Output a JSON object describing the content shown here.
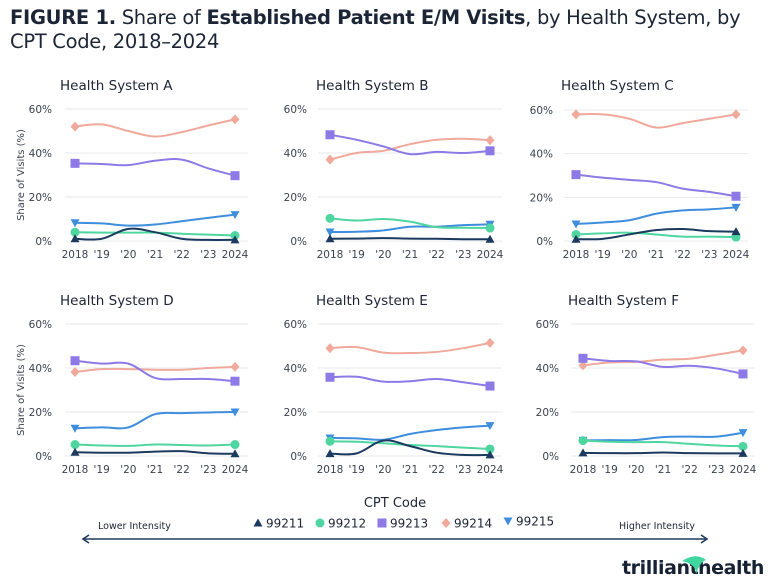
{
  "title": {
    "prefix": "FIGURE 1.",
    "part1": " Share of ",
    "bold": "Established Patient E/M Visits",
    "part2": ", by Health System, by CPT Code, 2018–2024"
  },
  "chart_data": {
    "type": "line",
    "title": "FIGURE 1. Share of Established Patient E/M Visits, by Health System, by CPT Code, 2018–2024",
    "ylabel": "Share of Visits (%)",
    "xlabel": "",
    "x": [
      2018,
      2019,
      2020,
      2021,
      2022,
      2023,
      2024
    ],
    "x_tick_labels": [
      "2018",
      "'19",
      "'20",
      "'21",
      "'22",
      "'23",
      "2024"
    ],
    "ylim": [
      0,
      60
    ],
    "y_ticks": [
      0,
      20,
      40,
      60
    ],
    "y_tick_labels": [
      "0%",
      "20%",
      "40%",
      "60%"
    ],
    "grid": true,
    "legend": {
      "title": "CPT Code",
      "placement": "bottom-center",
      "low_label": "Lower Intensity",
      "high_label": "Higher Intensity",
      "entries": [
        {
          "code": "99211",
          "marker": "triangle-up",
          "color": "#1b3a5e"
        },
        {
          "code": "99212",
          "marker": "circle",
          "color": "#4fd6a0"
        },
        {
          "code": "99213",
          "marker": "square",
          "color": "#8d7ae6"
        },
        {
          "code": "99214",
          "marker": "diamond",
          "color": "#f0a99a"
        },
        {
          "code": "99215",
          "marker": "triangle-down",
          "color": "#3f8edd"
        }
      ]
    },
    "panels": [
      {
        "name": "Health System A",
        "series": [
          {
            "code": "99211",
            "values": [
              1.0,
              1.0,
              5.5,
              4.0,
              1.0,
              0.5,
              0.5
            ]
          },
          {
            "code": "99212",
            "values": [
              4.0,
              3.8,
              3.8,
              3.8,
              3.3,
              2.9,
              2.5
            ]
          },
          {
            "code": "99213",
            "values": [
              35.3,
              35.0,
              34.5,
              36.5,
              37.0,
              33.0,
              29.7
            ]
          },
          {
            "code": "99214",
            "values": [
              52.0,
              53.0,
              50.0,
              47.5,
              49.5,
              52.5,
              55.3
            ]
          },
          {
            "code": "99215",
            "values": [
              8.3,
              8.0,
              7.0,
              7.5,
              9.0,
              10.5,
              12.0
            ]
          }
        ]
      },
      {
        "name": "Health System B",
        "series": [
          {
            "code": "99211",
            "values": [
              1.0,
              1.1,
              1.3,
              1.1,
              1.0,
              0.8,
              0.8
            ]
          },
          {
            "code": "99212",
            "values": [
              10.3,
              9.3,
              10.0,
              8.8,
              6.3,
              6.0,
              5.9
            ]
          },
          {
            "code": "99213",
            "values": [
              48.3,
              46.0,
              43.0,
              39.5,
              40.5,
              40.0,
              41.0
            ]
          },
          {
            "code": "99214",
            "values": [
              37.0,
              40.0,
              41.0,
              44.0,
              46.0,
              46.5,
              45.8
            ]
          },
          {
            "code": "99215",
            "values": [
              4.1,
              4.2,
              4.8,
              6.5,
              6.5,
              7.2,
              7.6
            ]
          }
        ]
      },
      {
        "name": "Health System C",
        "series": [
          {
            "code": "99211",
            "values": [
              0.8,
              1.0,
              3.0,
              5.0,
              5.5,
              4.5,
              4.3
            ]
          },
          {
            "code": "99212",
            "values": [
              3.0,
              3.5,
              3.8,
              3.0,
              2.0,
              2.0,
              1.8
            ]
          },
          {
            "code": "99213",
            "values": [
              30.4,
              29.0,
              28.0,
              27.0,
              24.0,
              22.5,
              20.5
            ]
          },
          {
            "code": "99214",
            "values": [
              58.0,
              58.0,
              56.0,
              52.0,
              54.0,
              56.0,
              58.0
            ]
          },
          {
            "code": "99215",
            "values": [
              7.8,
              8.5,
              9.5,
              12.5,
              14.0,
              14.5,
              15.4
            ]
          }
        ]
      },
      {
        "name": "Health System D",
        "series": [
          {
            "code": "99211",
            "values": [
              1.7,
              1.5,
              1.5,
              2.0,
              2.2,
              1.2,
              1.0
            ]
          },
          {
            "code": "99212",
            "values": [
              5.2,
              4.8,
              4.6,
              5.2,
              5.0,
              4.8,
              5.2
            ]
          },
          {
            "code": "99213",
            "values": [
              43.3,
              42.0,
              42.0,
              35.5,
              35.0,
              35.0,
              34.0
            ]
          },
          {
            "code": "99214",
            "values": [
              38.2,
              39.5,
              39.5,
              39.2,
              39.2,
              40.0,
              40.5
            ]
          },
          {
            "code": "99215",
            "values": [
              12.6,
              13.0,
              13.0,
              19.0,
              19.5,
              19.8,
              20.0
            ]
          }
        ]
      },
      {
        "name": "Health System E",
        "series": [
          {
            "code": "99211",
            "values": [
              1.1,
              1.2,
              7.0,
              4.5,
              1.5,
              0.5,
              0.5
            ]
          },
          {
            "code": "99212",
            "values": [
              6.7,
              6.5,
              5.8,
              5.0,
              4.5,
              3.8,
              3.2
            ]
          },
          {
            "code": "99213",
            "values": [
              35.8,
              36.0,
              33.8,
              34.0,
              35.0,
              33.5,
              31.8
            ]
          },
          {
            "code": "99214",
            "values": [
              49.0,
              49.5,
              47.0,
              46.8,
              47.3,
              49.0,
              51.4
            ]
          },
          {
            "code": "99215",
            "values": [
              8.2,
              8.0,
              7.4,
              10.0,
              11.8,
              13.0,
              13.8
            ]
          }
        ]
      },
      {
        "name": "Health System F",
        "series": [
          {
            "code": "99211",
            "values": [
              1.4,
              1.3,
              1.3,
              1.6,
              1.3,
              1.2,
              1.2
            ]
          },
          {
            "code": "99212",
            "values": [
              7.0,
              6.5,
              6.3,
              6.3,
              5.5,
              4.8,
              4.4
            ]
          },
          {
            "code": "99213",
            "values": [
              44.4,
              43.2,
              43.0,
              40.5,
              41.0,
              39.8,
              37.3
            ]
          },
          {
            "code": "99214",
            "values": [
              41.2,
              42.5,
              42.8,
              43.8,
              44.2,
              46.0,
              48.0
            ]
          },
          {
            "code": "99215",
            "values": [
              7.1,
              7.2,
              7.3,
              8.6,
              8.8,
              8.8,
              10.6
            ]
          }
        ]
      }
    ]
  },
  "logo": {
    "part1": "trilliant",
    "part2": "health"
  }
}
